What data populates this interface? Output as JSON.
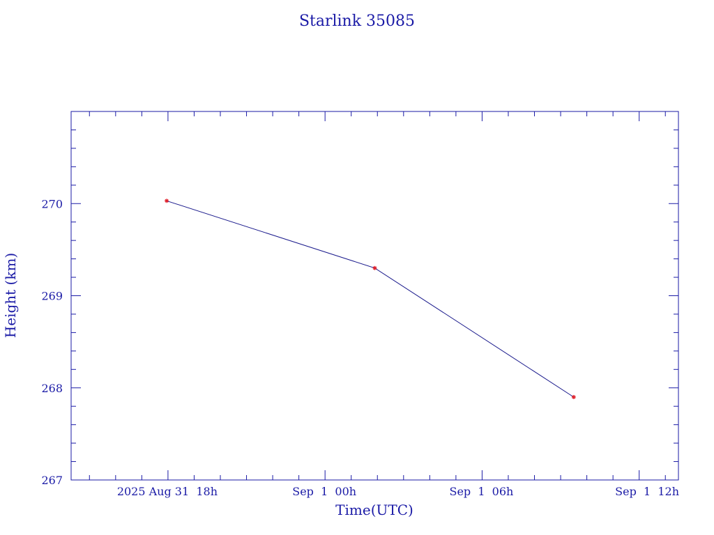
{
  "chart_data": {
    "type": "line",
    "title": "Starlink 35085",
    "xlabel": "Time(UTC)",
    "ylabel": "Height (km)",
    "x_unit": "hours (UTC)",
    "x_ticks": [
      {
        "value": 18,
        "label": "2025 Aug 31  18h"
      },
      {
        "value": 24,
        "label": "Sep  1  00h"
      },
      {
        "value": 30,
        "label": "Sep  1  06h"
      },
      {
        "value": 36,
        "label": "Sep  1  12h"
      }
    ],
    "xlim": [
      14.3,
      37.5
    ],
    "ylim": [
      267,
      271
    ],
    "y_ticks": [
      267,
      268,
      269,
      270
    ],
    "series": [
      {
        "x": [
          17.95,
          25.9,
          33.5
        ],
        "y": [
          270.03,
          269.3,
          267.9
        ]
      }
    ],
    "colors": {
      "axis": "#1a1aa6",
      "line": "#1a1a8c",
      "marker": "#e0202a"
    }
  }
}
